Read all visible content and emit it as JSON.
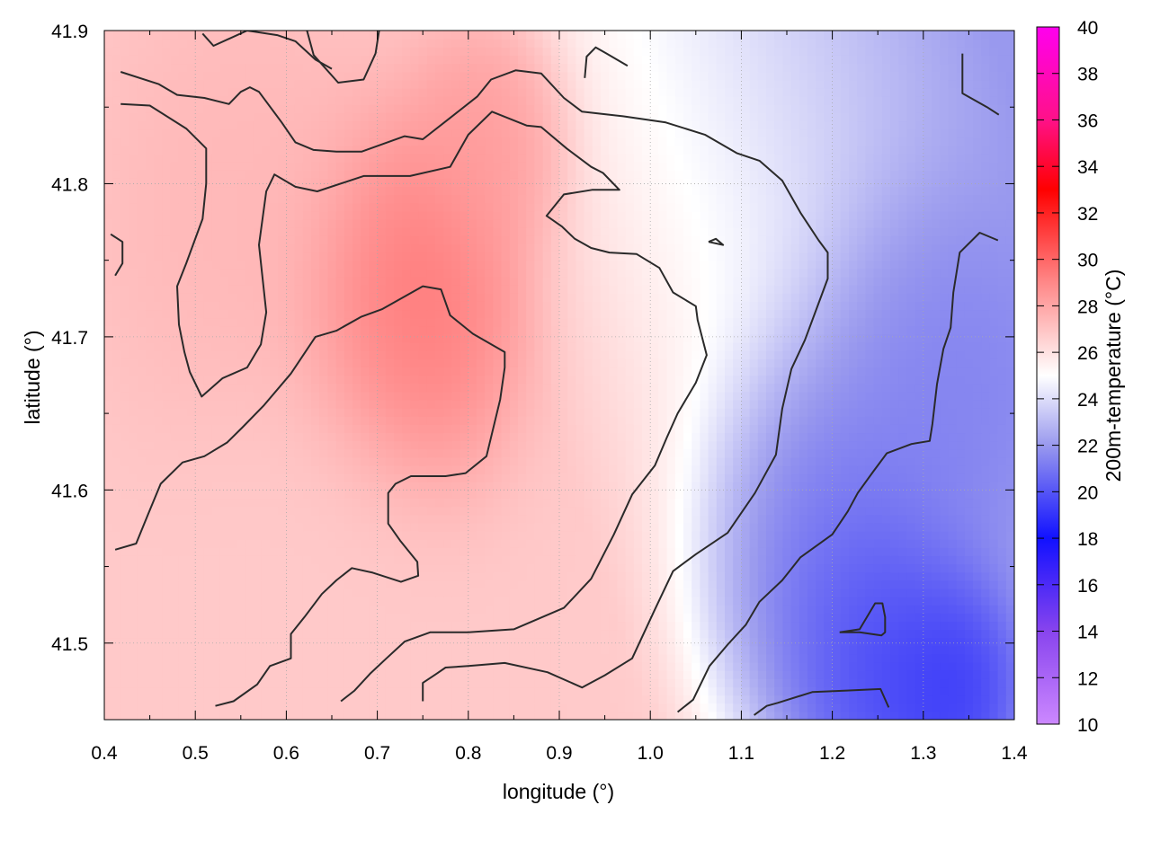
{
  "chart_data": {
    "type": "heatmap",
    "title": "",
    "xlabel": "longitude (°)",
    "ylabel": "latitude (°)",
    "colorbar_label": "200m-temperature (°C)",
    "xlim": [
      0.4,
      1.4
    ],
    "ylim": [
      41.45,
      41.9
    ],
    "x_ticks": [
      0.4,
      0.5,
      0.6,
      0.7,
      0.8,
      0.9,
      1.0,
      1.1,
      1.2,
      1.3,
      1.4
    ],
    "x_tick_labels": [
      "0.4",
      "0.5",
      "0.6",
      "0.7",
      "0.8",
      "0.9",
      "1.0",
      "1.1",
      "1.2",
      "1.3",
      "1.4"
    ],
    "y_ticks": [
      41.5,
      41.6,
      41.7,
      41.8,
      41.9
    ],
    "y_tick_labels": [
      "41.5",
      "41.6",
      "41.7",
      "41.8",
      "41.9"
    ],
    "grid": true,
    "colorbar": {
      "range": [
        10,
        40
      ],
      "ticks": [
        10,
        12,
        14,
        16,
        18,
        20,
        22,
        24,
        26,
        28,
        30,
        32,
        34,
        36,
        38,
        40
      ],
      "tick_labels": [
        "10",
        "12",
        "14",
        "16",
        "18",
        "20",
        "22",
        "24",
        "26",
        "28",
        "30",
        "32",
        "34",
        "36",
        "38",
        "40"
      ],
      "stops": [
        {
          "value": 10,
          "color": "#cc88ff"
        },
        {
          "value": 14,
          "color": "#8844ee"
        },
        {
          "value": 18,
          "color": "#1111ff"
        },
        {
          "value": 22,
          "color": "#9999ee"
        },
        {
          "value": 25,
          "color": "#ffffff"
        },
        {
          "value": 29,
          "color": "#ff8888"
        },
        {
          "value": 33,
          "color": "#ff0000"
        },
        {
          "value": 36,
          "color": "#ff1188"
        },
        {
          "value": 40,
          "color": "#ff00ee"
        }
      ]
    },
    "field_hotspots": [
      {
        "lon": 0.73,
        "lat": 41.72,
        "temp": 30.0,
        "spread": 0.09
      },
      {
        "lon": 0.82,
        "lat": 41.83,
        "temp": 28.5,
        "spread": 0.06
      },
      {
        "lon": 0.55,
        "lat": 41.78,
        "temp": 27.5,
        "spread": 0.12
      },
      {
        "lon": 0.62,
        "lat": 41.55,
        "temp": 26.8,
        "spread": 0.12
      },
      {
        "lon": 1.25,
        "lat": 41.49,
        "temp": 18.5,
        "spread": 0.08
      },
      {
        "lon": 1.33,
        "lat": 41.47,
        "temp": 18.5,
        "spread": 0.06
      },
      {
        "lon": 1.2,
        "lat": 41.55,
        "temp": 20.5,
        "spread": 0.1
      },
      {
        "lon": 1.32,
        "lat": 41.65,
        "temp": 21.0,
        "spread": 0.1
      }
    ],
    "field_background": {
      "west_temp": 26.8,
      "east_temp": 22.0,
      "gradient_axis": "southeast"
    },
    "contours": [
      {
        "points": [
          [
            0.418,
            41.873
          ],
          [
            0.46,
            41.865
          ],
          [
            0.48,
            41.858
          ],
          [
            0.51,
            41.856
          ],
          [
            0.537,
            41.852
          ],
          [
            0.55,
            41.86
          ],
          [
            0.56,
            41.863
          ],
          [
            0.57,
            41.86
          ],
          [
            0.595,
            41.84
          ],
          [
            0.61,
            41.827
          ],
          [
            0.63,
            41.822
          ],
          [
            0.655,
            41.821
          ],
          [
            0.683,
            41.821
          ],
          [
            0.73,
            41.831
          ],
          [
            0.75,
            41.829
          ],
          [
            0.78,
            41.843
          ],
          [
            0.81,
            41.857
          ],
          [
            0.825,
            41.868
          ],
          [
            0.852,
            41.874
          ],
          [
            0.88,
            41.872
          ],
          [
            0.905,
            41.856
          ],
          [
            0.925,
            41.847
          ],
          [
            0.97,
            41.844
          ],
          [
            1.017,
            41.84
          ],
          [
            1.06,
            41.832
          ],
          [
            1.095,
            41.82
          ],
          [
            1.12,
            41.815
          ],
          [
            1.145,
            41.802
          ],
          [
            1.165,
            41.781
          ],
          [
            1.185,
            41.763
          ],
          [
            1.195,
            41.755
          ],
          [
            1.195,
            41.738
          ],
          [
            1.185,
            41.722
          ],
          [
            1.17,
            41.698
          ],
          [
            1.155,
            41.679
          ],
          [
            1.145,
            41.653
          ],
          [
            1.138,
            41.623
          ],
          [
            1.115,
            41.598
          ],
          [
            1.085,
            41.572
          ],
          [
            1.05,
            41.558
          ],
          [
            1.025,
            41.547
          ],
          [
            1.005,
            41.522
          ],
          [
            0.98,
            41.49
          ],
          [
            0.95,
            41.479
          ],
          [
            0.925,
            41.471
          ],
          [
            0.887,
            41.481
          ],
          [
            0.84,
            41.487
          ],
          [
            0.8,
            41.485
          ],
          [
            0.775,
            41.484
          ],
          [
            0.765,
            41.48
          ],
          [
            0.75,
            41.474
          ],
          [
            0.75,
            41.462
          ]
        ]
      },
      {
        "points": [
          [
            0.418,
            41.852
          ],
          [
            0.45,
            41.851
          ],
          [
            0.49,
            41.836
          ],
          [
            0.512,
            41.823
          ],
          [
            0.512,
            41.8
          ],
          [
            0.508,
            41.777
          ],
          [
            0.49,
            41.748
          ],
          [
            0.48,
            41.733
          ],
          [
            0.482,
            41.708
          ],
          [
            0.488,
            41.69
          ],
          [
            0.494,
            41.677
          ],
          [
            0.507,
            41.661
          ],
          [
            0.53,
            41.673
          ],
          [
            0.557,
            41.68
          ],
          [
            0.572,
            41.695
          ],
          [
            0.578,
            41.716
          ],
          [
            0.57,
            41.76
          ],
          [
            0.578,
            41.795
          ],
          [
            0.587,
            41.806
          ],
          [
            0.61,
            41.798
          ],
          [
            0.634,
            41.795
          ],
          [
            0.685,
            41.805
          ],
          [
            0.736,
            41.805
          ],
          [
            0.78,
            41.811
          ],
          [
            0.8,
            41.832
          ],
          [
            0.826,
            41.847
          ],
          [
            0.864,
            41.838
          ],
          [
            0.88,
            41.837
          ],
          [
            0.908,
            41.823
          ],
          [
            0.935,
            41.811
          ],
          [
            0.948,
            41.807
          ],
          [
            0.966,
            41.796
          ],
          [
            0.936,
            41.796
          ],
          [
            0.905,
            41.793
          ],
          [
            0.886,
            41.779
          ],
          [
            0.903,
            41.772
          ],
          [
            0.917,
            41.764
          ],
          [
            0.935,
            41.758
          ],
          [
            0.955,
            41.755
          ],
          [
            0.985,
            41.754
          ],
          [
            1.01,
            41.745
          ],
          [
            1.025,
            41.729
          ],
          [
            1.05,
            41.72
          ],
          [
            1.052,
            41.711
          ],
          [
            1.062,
            41.688
          ],
          [
            1.05,
            41.67
          ],
          [
            1.03,
            41.65
          ],
          [
            1.018,
            41.634
          ],
          [
            1.005,
            41.616
          ],
          [
            0.98,
            41.597
          ],
          [
            0.96,
            41.571
          ],
          [
            0.935,
            41.542
          ],
          [
            0.905,
            41.523
          ],
          [
            0.85,
            41.509
          ],
          [
            0.8,
            41.507
          ],
          [
            0.758,
            41.507
          ],
          [
            0.73,
            41.501
          ],
          [
            0.71,
            41.49
          ],
          [
            0.692,
            41.48
          ],
          [
            0.675,
            41.469
          ],
          [
            0.66,
            41.462
          ]
        ]
      },
      {
        "points": [
          [
            0.412,
            41.561
          ],
          [
            0.435,
            41.565
          ],
          [
            0.448,
            41.584
          ],
          [
            0.462,
            41.604
          ],
          [
            0.486,
            41.618
          ],
          [
            0.51,
            41.622
          ],
          [
            0.535,
            41.631
          ],
          [
            0.552,
            41.641
          ],
          [
            0.575,
            41.655
          ],
          [
            0.605,
            41.676
          ],
          [
            0.632,
            41.7
          ],
          [
            0.655,
            41.704
          ],
          [
            0.682,
            41.713
          ],
          [
            0.705,
            41.718
          ],
          [
            0.75,
            41.733
          ],
          [
            0.77,
            41.731
          ],
          [
            0.78,
            41.714
          ],
          [
            0.805,
            41.702
          ],
          [
            0.84,
            41.69
          ],
          [
            0.84,
            41.68
          ],
          [
            0.835,
            41.659
          ],
          [
            0.82,
            41.622
          ],
          [
            0.797,
            41.611
          ],
          [
            0.775,
            41.609
          ],
          [
            0.737,
            41.609
          ],
          [
            0.72,
            41.604
          ],
          [
            0.712,
            41.598
          ],
          [
            0.712,
            41.578
          ],
          [
            0.725,
            41.567
          ],
          [
            0.744,
            41.553
          ],
          [
            0.745,
            41.544
          ],
          [
            0.726,
            41.54
          ],
          [
            0.695,
            41.546
          ],
          [
            0.672,
            41.549
          ],
          [
            0.655,
            41.541
          ],
          [
            0.639,
            41.532
          ],
          [
            0.62,
            41.517
          ],
          [
            0.605,
            41.506
          ],
          [
            0.605,
            41.49
          ],
          [
            0.582,
            41.485
          ],
          [
            0.568,
            41.473
          ],
          [
            0.542,
            41.462
          ],
          [
            0.522,
            41.459
          ]
        ]
      },
      {
        "points": [
          [
            0.62,
            41.906
          ],
          [
            0.63,
            41.884
          ],
          [
            0.657,
            41.866
          ],
          [
            0.685,
            41.868
          ],
          [
            0.698,
            41.885
          ],
          [
            0.702,
            41.9
          ]
        ]
      },
      {
        "points": [
          [
            0.508,
            41.898
          ],
          [
            0.52,
            41.89
          ],
          [
            0.557,
            41.9
          ],
          [
            0.59,
            41.897
          ],
          [
            0.61,
            41.893
          ],
          [
            0.632,
            41.881
          ],
          [
            0.65,
            41.875
          ]
        ]
      },
      {
        "points": [
          [
            0.928,
            41.869
          ],
          [
            0.93,
            41.883
          ],
          [
            0.94,
            41.889
          ],
          [
            0.952,
            41.885
          ],
          [
            0.975,
            41.877
          ]
        ]
      },
      {
        "points": [
          [
            0.407,
            41.767
          ],
          [
            0.42,
            41.762
          ],
          [
            0.42,
            41.748
          ],
          [
            0.412,
            41.74
          ]
        ]
      },
      {
        "points": [
          [
            1.064,
            41.762
          ],
          [
            1.08,
            41.76
          ],
          [
            1.072,
            41.764
          ],
          [
            1.064,
            41.762
          ]
        ]
      },
      {
        "points": [
          [
            1.343,
            41.885
          ],
          [
            1.343,
            41.859
          ],
          [
            1.37,
            41.85
          ],
          [
            1.383,
            41.845
          ]
        ]
      },
      {
        "points": [
          [
            1.382,
            41.763
          ],
          [
            1.362,
            41.768
          ],
          [
            1.34,
            41.755
          ],
          [
            1.333,
            41.729
          ],
          [
            1.33,
            41.706
          ],
          [
            1.322,
            41.692
          ],
          [
            1.315,
            41.669
          ],
          [
            1.31,
            41.643
          ],
          [
            1.307,
            41.632
          ],
          [
            1.287,
            41.63
          ],
          [
            1.26,
            41.624
          ],
          [
            1.245,
            41.612
          ],
          [
            1.228,
            41.598
          ],
          [
            1.217,
            41.586
          ],
          [
            1.2,
            41.571
          ],
          [
            1.165,
            41.556
          ],
          [
            1.145,
            41.541
          ],
          [
            1.12,
            41.527
          ],
          [
            1.105,
            41.512
          ],
          [
            1.085,
            41.499
          ],
          [
            1.065,
            41.485
          ],
          [
            1.047,
            41.463
          ],
          [
            1.03,
            41.455
          ]
        ]
      },
      {
        "points": [
          [
            1.208,
            41.507
          ],
          [
            1.23,
            41.509
          ],
          [
            1.247,
            41.526
          ],
          [
            1.255,
            41.526
          ],
          [
            1.258,
            41.517
          ],
          [
            1.258,
            41.507
          ],
          [
            1.254,
            41.505
          ],
          [
            1.23,
            41.507
          ],
          [
            1.208,
            41.507
          ]
        ]
      },
      {
        "points": [
          [
            1.114,
            41.453
          ],
          [
            1.128,
            41.459
          ],
          [
            1.14,
            41.461
          ],
          [
            1.178,
            41.468
          ],
          [
            1.216,
            41.469
          ],
          [
            1.253,
            41.47
          ],
          [
            1.262,
            41.458
          ]
        ]
      }
    ]
  }
}
